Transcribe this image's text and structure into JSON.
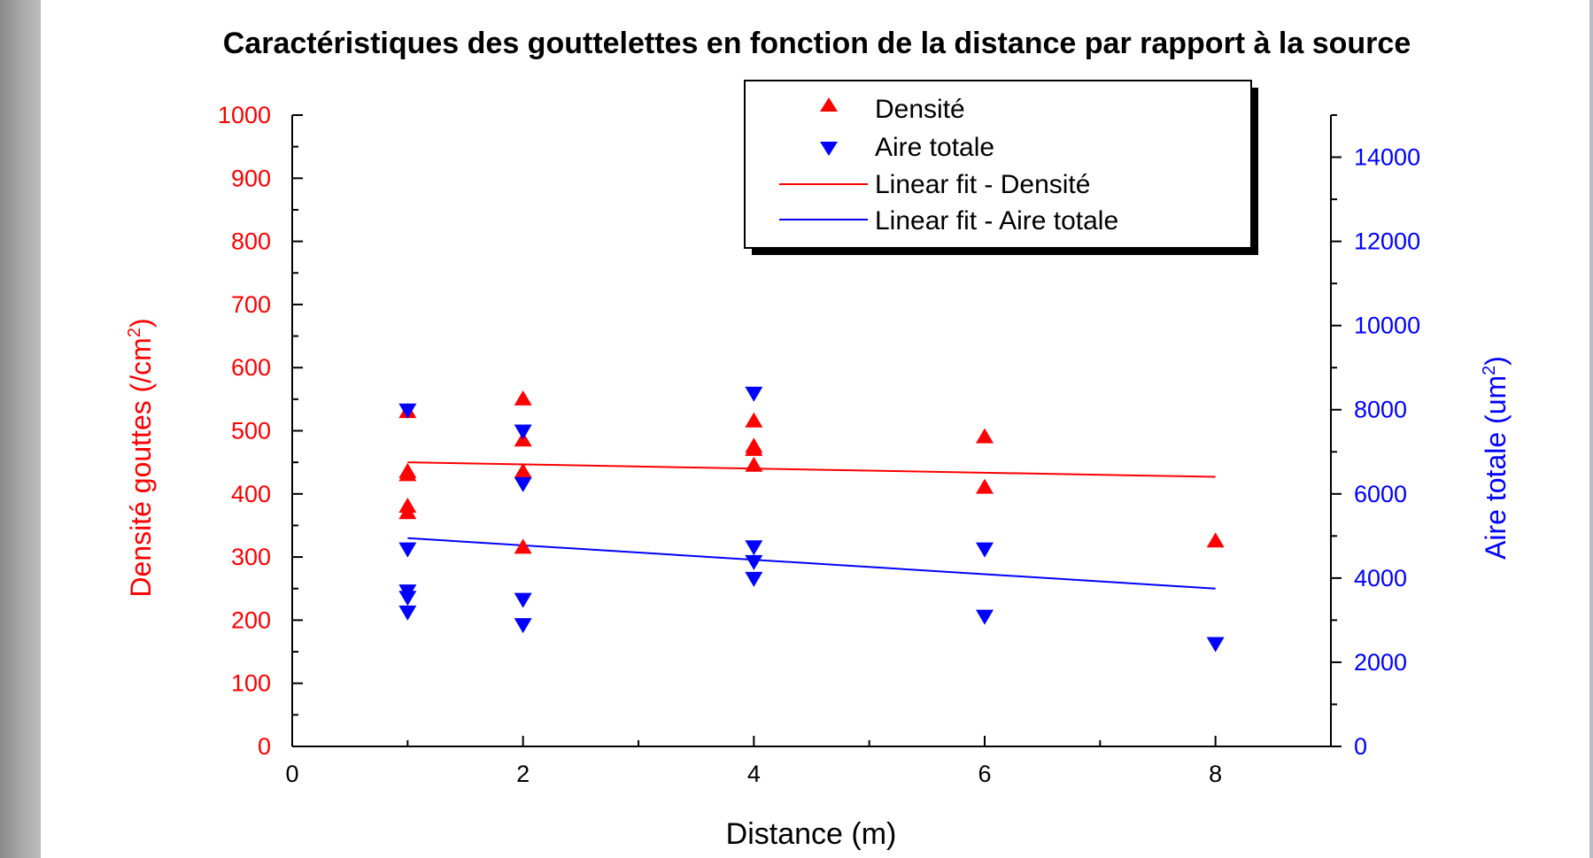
{
  "chart_data": {
    "type": "scatter",
    "title": "Caractéristiques des gouttelettes en fonction de la distance par rapport à la source",
    "xlabel": "Distance (m)",
    "ylabel_left": "Densité gouttes (/cm",
    "ylabel_left_sup": "2",
    "ylabel_left_end": ")",
    "ylabel_right": "Aire totale (um",
    "ylabel_right_sup": "2",
    "ylabel_right_end": ")",
    "xlim": [
      0,
      9
    ],
    "ylim_left": [
      0,
      1000
    ],
    "ylim_right": [
      0,
      15000
    ],
    "x_ticks": [
      0,
      2,
      4,
      6,
      8
    ],
    "y_left_ticks": [
      0,
      100,
      200,
      300,
      400,
      500,
      600,
      700,
      800,
      900,
      1000
    ],
    "y_right_ticks": [
      0,
      2000,
      4000,
      6000,
      8000,
      10000,
      12000,
      14000
    ],
    "legend_position": "top-right",
    "series": [
      {
        "name": "Densité",
        "axis": "left",
        "marker": "triangle-up",
        "color": "#ff0000",
        "points": [
          {
            "x": 1,
            "y": 530
          },
          {
            "x": 1,
            "y": 435
          },
          {
            "x": 1,
            "y": 430
          },
          {
            "x": 1,
            "y": 380
          },
          {
            "x": 1,
            "y": 370
          },
          {
            "x": 2,
            "y": 550
          },
          {
            "x": 2,
            "y": 485
          },
          {
            "x": 2,
            "y": 435
          },
          {
            "x": 2,
            "y": 315
          },
          {
            "x": 4,
            "y": 515
          },
          {
            "x": 4,
            "y": 475
          },
          {
            "x": 4,
            "y": 470
          },
          {
            "x": 4,
            "y": 445
          },
          {
            "x": 6,
            "y": 490
          },
          {
            "x": 6,
            "y": 410
          },
          {
            "x": 8,
            "y": 325
          }
        ]
      },
      {
        "name": "Aire totale",
        "axis": "right",
        "marker": "triangle-down",
        "color": "#0000ff",
        "points": [
          {
            "x": 1,
            "y": 8000
          },
          {
            "x": 1,
            "y": 4700
          },
          {
            "x": 1,
            "y": 3700
          },
          {
            "x": 1,
            "y": 3550
          },
          {
            "x": 1,
            "y": 3200
          },
          {
            "x": 2,
            "y": 7500
          },
          {
            "x": 2,
            "y": 6250
          },
          {
            "x": 2,
            "y": 3500
          },
          {
            "x": 2,
            "y": 2900
          },
          {
            "x": 4,
            "y": 8400
          },
          {
            "x": 4,
            "y": 4750
          },
          {
            "x": 4,
            "y": 4400
          },
          {
            "x": 4,
            "y": 4000
          },
          {
            "x": 6,
            "y": 4700
          },
          {
            "x": 6,
            "y": 3100
          },
          {
            "x": 8,
            "y": 2450
          }
        ]
      },
      {
        "name": "Linear fit - Densité",
        "axis": "left",
        "type": "line",
        "color": "#ff0000",
        "points": [
          {
            "x": 1,
            "y": 450
          },
          {
            "x": 8,
            "y": 427
          }
        ]
      },
      {
        "name": "Linear fit - Aire totale",
        "axis": "right",
        "type": "line",
        "color": "#0000ff",
        "points": [
          {
            "x": 1,
            "y": 4950
          },
          {
            "x": 8,
            "y": 3750
          }
        ]
      }
    ]
  }
}
